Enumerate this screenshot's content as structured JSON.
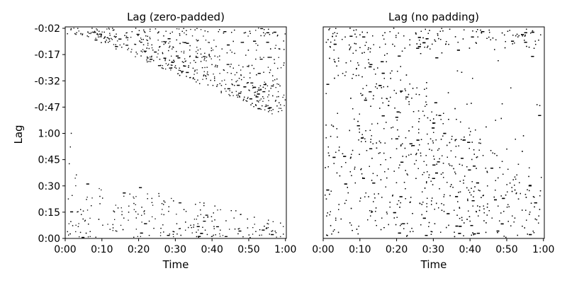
{
  "chart_data": [
    {
      "type": "heatmap",
      "title": "Lag (zero-padded)",
      "xlabel": "Time",
      "ylabel": "Lag",
      "x_ticks": [
        "0:00",
        "0:10",
        "0:20",
        "0:30",
        "0:40",
        "0:50",
        "1:00"
      ],
      "y_ticks": [
        "0:00",
        "0:15",
        "0:30",
        "0:45",
        "1:00",
        "-0:47",
        "-0:32",
        "-0:17",
        "-0:02"
      ],
      "cell_color": "#000000",
      "background": "#ffffff",
      "grid": false
    },
    {
      "type": "heatmap",
      "title": "Lag (no padding)",
      "xlabel": "Time",
      "ylabel": "",
      "x_ticks": [
        "0:00",
        "0:10",
        "0:20",
        "0:30",
        "0:40",
        "0:50",
        "1:00"
      ],
      "y_ticks": [],
      "cell_color": "#000000",
      "background": "#ffffff",
      "grid": false
    }
  ]
}
